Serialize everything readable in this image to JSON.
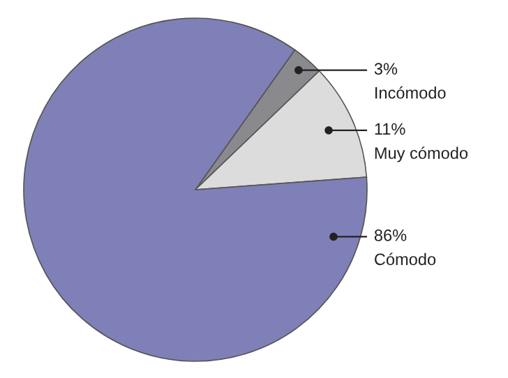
{
  "chart_data": {
    "type": "pie",
    "categories": [
      "Incómodo",
      "Muy cómodo",
      "Cómodo"
    ],
    "values": [
      3,
      11,
      86
    ],
    "value_labels": [
      "3%",
      "11%",
      "86%"
    ],
    "colors": [
      "#8a8a8e",
      "#dcdcdc",
      "#7f80b8"
    ],
    "legend": false
  }
}
